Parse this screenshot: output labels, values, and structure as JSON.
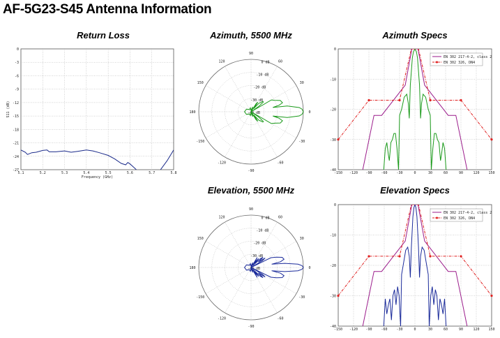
{
  "page": {
    "title": "AF-5G23-S45 Antenna Information"
  },
  "colors": {
    "azimuth": "#1a9a1a",
    "elevation": "#1a2a9a",
    "return_loss": "#1a2a8a",
    "mask_class2": "#9a1a8a",
    "mask_dn": "#e02020"
  },
  "chart_data": [
    {
      "id": "return_loss",
      "type": "line",
      "title": "Return Loss",
      "xlabel": "Frequency (GHz)",
      "ylabel": "S11 (dB)",
      "xlim": [
        5.1,
        5.8
      ],
      "ylim": [
        -27,
        0
      ],
      "grid": true,
      "xticks": [
        "5.1",
        "5.2",
        "5.3",
        "5.4",
        "5.5",
        "5.6",
        "5.7",
        "5.8"
      ],
      "yticks": [
        "0",
        "-3",
        "-6",
        "-9",
        "-12",
        "-15",
        "-18",
        "-21",
        "-24",
        "-27"
      ],
      "x": [
        5.1,
        5.12,
        5.13,
        5.15,
        5.17,
        5.2,
        5.22,
        5.23,
        5.26,
        5.3,
        5.33,
        5.36,
        5.4,
        5.43,
        5.46,
        5.5,
        5.53,
        5.56,
        5.58,
        5.59,
        5.6,
        5.62,
        5.64,
        5.66,
        5.72,
        5.74,
        5.77,
        5.8
      ],
      "y": [
        -22.6,
        -23.1,
        -23.6,
        -23.2,
        -23.1,
        -22.7,
        -22.6,
        -23.0,
        -23.0,
        -22.8,
        -23.1,
        -22.9,
        -22.6,
        -22.8,
        -23.2,
        -23.8,
        -24.6,
        -25.6,
        -25.9,
        -25.4,
        -25.7,
        -26.6,
        -27.5,
        -29,
        -29,
        -27,
        -25,
        -22.6
      ]
    },
    {
      "id": "azimuth_polar",
      "type": "polar",
      "title": "Azimuth, 5500 MHz",
      "rings": [
        "0 dB",
        "-10 dB",
        "-20 dB",
        "-30 dB",
        "-40 dB"
      ],
      "rlim": [
        -40,
        0
      ],
      "angle_labels": [
        "0",
        "30",
        "60",
        "90",
        "120",
        "150",
        "180",
        "-150",
        "-120",
        "-90",
        "-60",
        "-30"
      ],
      "series": [
        {
          "name": "Azimuth",
          "color_key": "azimuth",
          "angles": [
            0,
            3,
            5,
            9,
            11,
            13,
            16,
            21,
            26,
            30,
            32,
            35,
            38,
            41,
            44,
            47,
            50,
            52,
            55,
            58,
            61,
            70,
            80,
            90,
            100,
            120,
            150,
            180
          ],
          "gain": [
            0,
            -1,
            -3,
            -12,
            -23,
            -18,
            -15,
            -16,
            -20,
            -22,
            -40,
            -33,
            -28,
            -28,
            -30,
            -31,
            -37,
            -35,
            -31,
            -33,
            -40,
            -36,
            -38,
            -39,
            -37,
            -38,
            -36,
            -35
          ]
        }
      ]
    },
    {
      "id": "azimuth_specs",
      "type": "line",
      "title": "Azimuth Specs",
      "xlim": [
        -150,
        150
      ],
      "ylim": [
        -40,
        0
      ],
      "grid": true,
      "xticks": [
        "-150",
        "-120",
        "-90",
        "-60",
        "-30",
        "0",
        "30",
        "60",
        "90",
        "120",
        "150"
      ],
      "yticks": [
        "0",
        "-10",
        "-20",
        "-30",
        "-40"
      ],
      "legend": [
        "EN 302 217-4-2, class 2",
        "EN 302 326, DN4"
      ],
      "legend_position": "top-right",
      "masks": [
        {
          "name": "EN 302 217-4-2, class 2",
          "color_key": "mask_class2",
          "x": [
            -102,
            -80,
            -65,
            -19,
            -6,
            6,
            19,
            65,
            80,
            102
          ],
          "y": [
            -40,
            -22,
            -22,
            -12,
            0,
            0,
            -12,
            -22,
            -22,
            -40
          ]
        },
        {
          "name": "EN 302 326, DN4",
          "color_key": "mask_dn",
          "x": [
            -150,
            -90,
            -30,
            -7,
            7,
            30,
            90,
            150
          ],
          "y": [
            -30,
            -17,
            -17,
            0,
            0,
            -17,
            -17,
            -30
          ],
          "markers": [
            -150,
            -90,
            -30,
            30,
            90,
            150
          ]
        }
      ],
      "pattern": {
        "color_key": "azimuth",
        "x": [
          -61,
          -58,
          -55,
          -52,
          -50,
          -47,
          -44,
          -41,
          -38,
          -35,
          -32,
          -30,
          -26,
          -21,
          -16,
          -13,
          -11,
          -9,
          -5,
          -3,
          0,
          3,
          5,
          9,
          11,
          13,
          16,
          21,
          26,
          30,
          32,
          35,
          38,
          41,
          44,
          47,
          50,
          52,
          55,
          58,
          61
        ],
        "y": [
          -40,
          -33,
          -31,
          -35,
          -37,
          -31,
          -30,
          -28,
          -28,
          -33,
          -40,
          -22,
          -20,
          -16,
          -15,
          -18,
          -23,
          -12,
          -3,
          -1,
          0,
          -1,
          -3,
          -12,
          -23,
          -18,
          -15,
          -16,
          -20,
          -22,
          -40,
          -33,
          -28,
          -28,
          -30,
          -31,
          -37,
          -35,
          -31,
          -33,
          -40
        ]
      }
    },
    {
      "id": "elevation_polar",
      "type": "polar",
      "title": "Elevation, 5500 MHz",
      "rings": [
        "0 dB",
        "-10 dB",
        "-20 dB",
        "-30 dB",
        "-40 dB"
      ],
      "rlim": [
        -40,
        0
      ],
      "angle_labels": [
        "0",
        "30",
        "60",
        "90",
        "120",
        "150",
        "180",
        "-150",
        "-120",
        "-90",
        "-60",
        "-30"
      ],
      "series": [
        {
          "name": "Elevation",
          "color_key": "elevation",
          "angles": [
            0,
            2,
            4,
            7,
            9,
            11,
            14,
            18,
            22,
            26,
            28,
            31,
            34,
            37,
            40,
            43,
            46,
            49,
            52,
            55,
            58,
            61,
            70,
            80,
            90,
            100,
            120,
            150,
            180
          ],
          "gain": [
            0,
            -1,
            -4,
            -14,
            -24,
            -17,
            -14,
            -15,
            -19,
            -23,
            -40,
            -30,
            -27,
            -33,
            -28,
            -30,
            -38,
            -31,
            -33,
            -36,
            -31,
            -40,
            -36,
            -38,
            -39,
            -37,
            -38,
            -36,
            -35
          ]
        }
      ]
    },
    {
      "id": "elevation_specs",
      "type": "line",
      "title": "Elevation Specs",
      "xlim": [
        -150,
        150
      ],
      "ylim": [
        -40,
        0
      ],
      "grid": true,
      "xticks": [
        "-150",
        "-120",
        "-90",
        "-60",
        "-30",
        "0",
        "30",
        "60",
        "90",
        "120",
        "150"
      ],
      "yticks": [
        "0",
        "-10",
        "-20",
        "-30",
        "-40"
      ],
      "legend": [
        "EN 302 217-4-2, class 2",
        "EN 302 326, DN4"
      ],
      "legend_position": "top-right",
      "masks": [
        {
          "name": "EN 302 217-4-2, class 2",
          "color_key": "mask_class2",
          "x": [
            -102,
            -80,
            -65,
            -19,
            -6,
            6,
            19,
            65,
            80,
            102
          ],
          "y": [
            -40,
            -22,
            -22,
            -12,
            0,
            0,
            -12,
            -22,
            -22,
            -40
          ]
        },
        {
          "name": "EN 302 326, DN4",
          "color_key": "mask_dn",
          "x": [
            -150,
            -90,
            -30,
            -7,
            7,
            30,
            90,
            150
          ],
          "y": [
            -30,
            -17,
            -17,
            0,
            0,
            -17,
            -17,
            -30
          ],
          "markers": [
            -150,
            -90,
            -30,
            30,
            90,
            150
          ]
        }
      ],
      "pattern": {
        "color_key": "elevation",
        "x": [
          -61,
          -58,
          -55,
          -52,
          -49,
          -46,
          -43,
          -40,
          -37,
          -34,
          -31,
          -28,
          -26,
          -22,
          -18,
          -14,
          -11,
          -9,
          -7,
          -4,
          -2,
          0,
          2,
          4,
          7,
          9,
          11,
          14,
          18,
          22,
          26,
          28,
          31,
          34,
          37,
          40,
          43,
          46,
          49,
          52,
          55,
          58,
          61
        ],
        "y": [
          -40,
          -31,
          -36,
          -33,
          -31,
          -38,
          -30,
          -28,
          -33,
          -27,
          -30,
          -40,
          -23,
          -19,
          -15,
          -14,
          -17,
          -24,
          -14,
          -4,
          -1,
          0,
          -1,
          -4,
          -14,
          -24,
          -17,
          -14,
          -15,
          -19,
          -23,
          -40,
          -30,
          -27,
          -33,
          -28,
          -30,
          -38,
          -31,
          -33,
          -36,
          -31,
          -40
        ]
      }
    }
  ]
}
